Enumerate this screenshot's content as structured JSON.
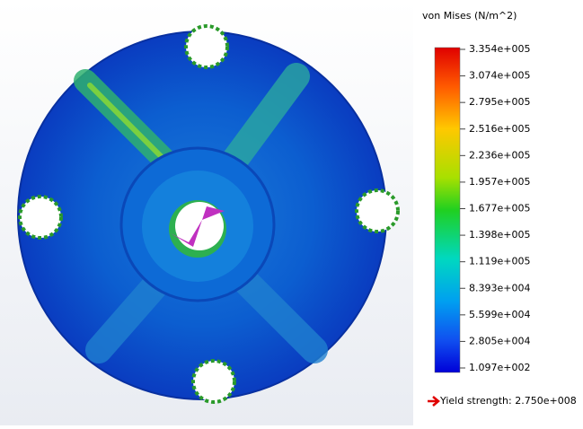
{
  "legend": {
    "title": "von Mises (N/m^2)",
    "labels": [
      "3.354e+005",
      "3.074e+005",
      "2.795e+005",
      "2.516e+005",
      "2.236e+005",
      "1.957e+005",
      "1.677e+005",
      "1.398e+005",
      "1.119e+005",
      "8.393e+004",
      "5.599e+004",
      "2.805e+004",
      "1.097e+002"
    ],
    "yield": "Yield strength: 2.750e+008"
  }
}
